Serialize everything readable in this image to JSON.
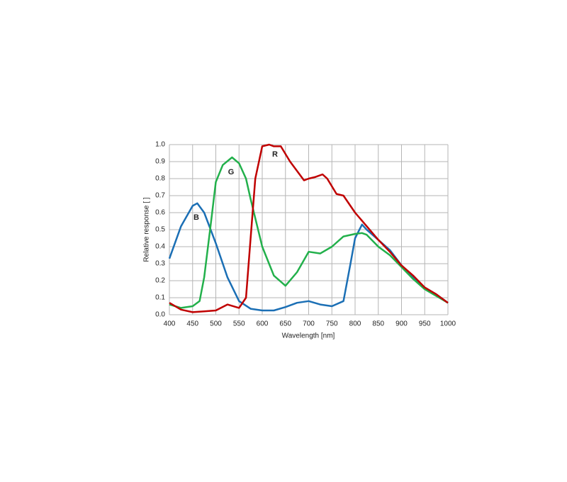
{
  "chart_data": {
    "type": "line",
    "xlabel": "Wavelength [nm]",
    "ylabel": "Relative response [ ]",
    "xlim": [
      400,
      1000
    ],
    "xticks": [
      400,
      450,
      500,
      550,
      600,
      650,
      700,
      750,
      800,
      850,
      900,
      950,
      1000
    ],
    "ylim": [
      0,
      1
    ],
    "yticks": [
      {
        "value": 0,
        "label": "0.0"
      },
      0.1,
      0.2,
      0.3,
      0.4,
      0.5,
      0.6,
      0.7,
      0.8,
      0.9,
      {
        "value": 1,
        "label": "1.0"
      }
    ],
    "grid": true,
    "series": [
      {
        "name": "B",
        "color": "#1b6fb5",
        "x": [
          400,
          425,
          450,
          460,
          475,
          500,
          525,
          550,
          575,
          600,
          625,
          650,
          675,
          700,
          725,
          750,
          775,
          790,
          800,
          815,
          825,
          850,
          875,
          900,
          925,
          950,
          975,
          1000
        ],
        "values": [
          0.33,
          0.52,
          0.64,
          0.655,
          0.6,
          0.42,
          0.22,
          0.08,
          0.035,
          0.025,
          0.025,
          0.045,
          0.07,
          0.08,
          0.06,
          0.05,
          0.08,
          0.3,
          0.45,
          0.53,
          0.5,
          0.44,
          0.38,
          0.29,
          0.22,
          0.16,
          0.12,
          0.07
        ]
      },
      {
        "name": "G",
        "color": "#22b04b",
        "x": [
          400,
          425,
          450,
          465,
          475,
          490,
          500,
          515,
          535,
          550,
          565,
          575,
          600,
          625,
          650,
          675,
          700,
          725,
          750,
          775,
          800,
          815,
          825,
          850,
          875,
          900,
          925,
          950,
          975,
          1000
        ],
        "values": [
          0.06,
          0.04,
          0.05,
          0.08,
          0.22,
          0.55,
          0.78,
          0.88,
          0.925,
          0.89,
          0.8,
          0.68,
          0.4,
          0.23,
          0.17,
          0.25,
          0.37,
          0.36,
          0.4,
          0.46,
          0.475,
          0.48,
          0.47,
          0.4,
          0.35,
          0.28,
          0.21,
          0.15,
          0.11,
          0.07
        ]
      },
      {
        "name": "R",
        "color": "#c00000",
        "x": [
          400,
          425,
          450,
          475,
          500,
          525,
          550,
          565,
          575,
          585,
          600,
          615,
          625,
          640,
          660,
          690,
          700,
          715,
          730,
          740,
          760,
          775,
          800,
          825,
          850,
          875,
          900,
          925,
          950,
          975,
          1000
        ],
        "values": [
          0.07,
          0.03,
          0.015,
          0.02,
          0.025,
          0.06,
          0.04,
          0.1,
          0.45,
          0.8,
          0.99,
          1.0,
          0.99,
          0.99,
          0.9,
          0.79,
          0.8,
          0.81,
          0.825,
          0.8,
          0.71,
          0.7,
          0.6,
          0.52,
          0.44,
          0.37,
          0.29,
          0.23,
          0.16,
          0.12,
          0.07
        ]
      }
    ]
  }
}
